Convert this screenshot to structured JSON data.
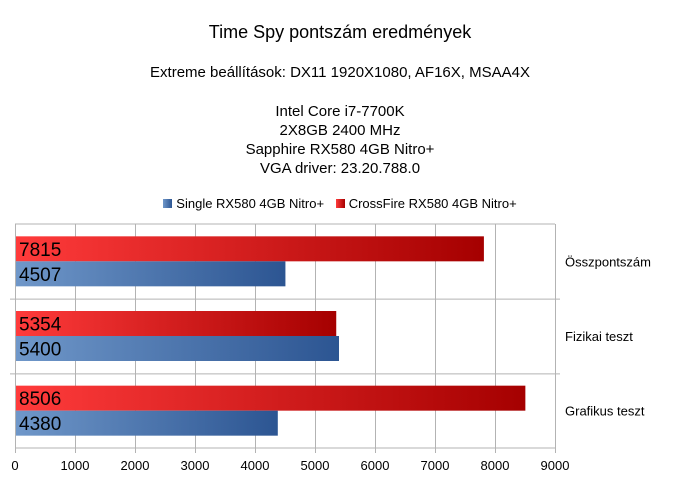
{
  "chart_data": {
    "type": "bar",
    "orientation": "horizontal",
    "title": "Time Spy pontszám eredmények",
    "subtitle_lines": [
      "Extreme beállítások: DX11 1920X1080, AF16X, MSAA4X",
      "",
      "Intel Core i7-7700K",
      "2X8GB 2400 MHz",
      "Sapphire RX580 4GB Nitro+",
      "VGA driver: 23.20.788.0"
    ],
    "categories": [
      "Összpontszám",
      "Fizikai teszt",
      "Grafikus teszt"
    ],
    "series": [
      {
        "name": "Single RX580 4GB Nitro+",
        "values": [
          4507,
          5400,
          4380
        ],
        "color": "#3a64a4"
      },
      {
        "name": "CrossFire RX580 4GB Nitro+",
        "values": [
          7815,
          5354,
          8506
        ],
        "color": "#d40000"
      }
    ],
    "xlim": [
      0,
      9000
    ],
    "xticks": [
      0,
      1000,
      2000,
      3000,
      4000,
      5000,
      6000,
      7000,
      8000,
      9000
    ],
    "grid": true,
    "legend_position": "top-center",
    "category_label_position": "right"
  }
}
